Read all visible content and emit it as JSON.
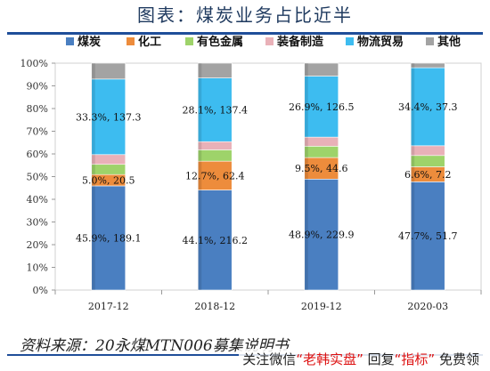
{
  "title": "图表：煤炭业务占比近半",
  "source": "资料来源：20永煤MTN006募集说明书",
  "watermark": {
    "prefix": "关注微信",
    "account": "“老韩实盘”",
    "mid": "回复",
    "keyword": "“指标”",
    "suffix": "免费领"
  },
  "colors": {
    "煤炭": "#4a7fc1",
    "化工": "#ed8c3c",
    "有色金属": "#9ed36a",
    "装备制造": "#e9b1b8",
    "物流贸易": "#3dbcf0",
    "其他": "#a3a3a3"
  },
  "chart_data": {
    "type": "bar",
    "stacked": true,
    "categories": [
      "2017-12",
      "2018-12",
      "2019-12",
      "2020-03"
    ],
    "ylim": [
      0,
      100
    ],
    "y_ticks": [
      "0%",
      "10%",
      "20%",
      "30%",
      "40%",
      "50%",
      "60%",
      "70%",
      "80%",
      "90%",
      "100%"
    ],
    "legend_position": "top",
    "series": [
      {
        "name": "煤炭",
        "values": [
          45.9,
          44.1,
          48.9,
          47.7
        ],
        "labels": [
          "45.9%, 189.1",
          "44.1%, 216.2",
          "48.9%, 229.9",
          "47.7%, 51.7"
        ]
      },
      {
        "name": "化工",
        "values": [
          5.0,
          12.7,
          9.5,
          6.6
        ],
        "labels": [
          "5.0%, 20.5",
          "12.7%, 62.4",
          "9.5%, 44.6",
          "6.6%, 7.2"
        ]
      },
      {
        "name": "有色金属",
        "values": [
          4.5,
          5.0,
          5.0,
          5.0
        ],
        "labels": [
          "",
          "",
          "",
          ""
        ]
      },
      {
        "name": "装备制造",
        "values": [
          4.3,
          3.6,
          4.0,
          4.3
        ],
        "labels": [
          "",
          "",
          "",
          ""
        ]
      },
      {
        "name": "物流贸易",
        "values": [
          33.3,
          28.1,
          26.9,
          34.4
        ],
        "labels": [
          "33.3%, 137.3",
          "28.1%, 137.4",
          "26.9%, 126.5",
          "34.4%, 37.3"
        ]
      },
      {
        "name": "其他",
        "values": [
          7.0,
          6.5,
          5.7,
          2.0
        ],
        "labels": [
          "",
          "",
          "",
          ""
        ]
      }
    ]
  }
}
